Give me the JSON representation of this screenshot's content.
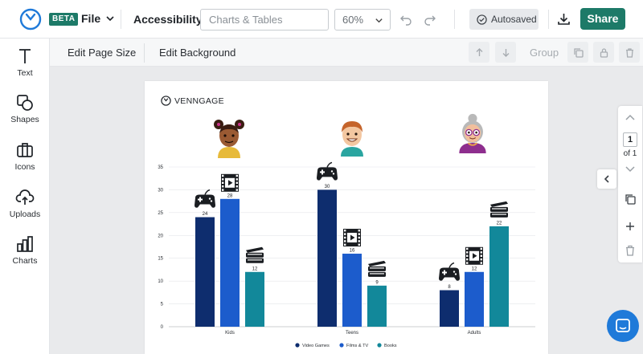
{
  "header": {
    "beta_badge": "BETA",
    "file_menu": "File",
    "accessibility": "Accessibility",
    "search_placeholder": "Charts & Tables",
    "zoom": "60%",
    "autosaved": "Autosaved",
    "share": "Share"
  },
  "sidebar": {
    "items": [
      {
        "label": "Text",
        "icon": "text-icon"
      },
      {
        "label": "Shapes",
        "icon": "shapes-icon"
      },
      {
        "label": "Icons",
        "icon": "icons-icon"
      },
      {
        "label": "Uploads",
        "icon": "uploads-icon"
      },
      {
        "label": "Charts",
        "icon": "charts-icon"
      }
    ]
  },
  "toolbar": {
    "edit_page_size": "Edit Page Size",
    "edit_background": "Edit Background",
    "group": "Group"
  },
  "page": {
    "brand": "VENNGAGE"
  },
  "pager": {
    "current": "1",
    "of_label": "of 1"
  },
  "colors": {
    "accent": "#1d7a68",
    "video_games": "#0e2d6e",
    "films_tv": "#1c5ccc",
    "books": "#12889a"
  },
  "chart_data": {
    "type": "bar",
    "categories": [
      "Kids",
      "Teens",
      "Adults"
    ],
    "series": [
      {
        "name": "Video Games",
        "values": [
          24,
          30,
          8
        ]
      },
      {
        "name": "Films & TV",
        "values": [
          28,
          16,
          12
        ]
      },
      {
        "name": "Books",
        "values": [
          12,
          9,
          22
        ]
      }
    ],
    "yticks": [
      "0",
      "5",
      "10",
      "15",
      "20",
      "25",
      "30",
      "35"
    ],
    "ylim": [
      0,
      35
    ],
    "legend_position": "bottom-center",
    "grid": true
  }
}
